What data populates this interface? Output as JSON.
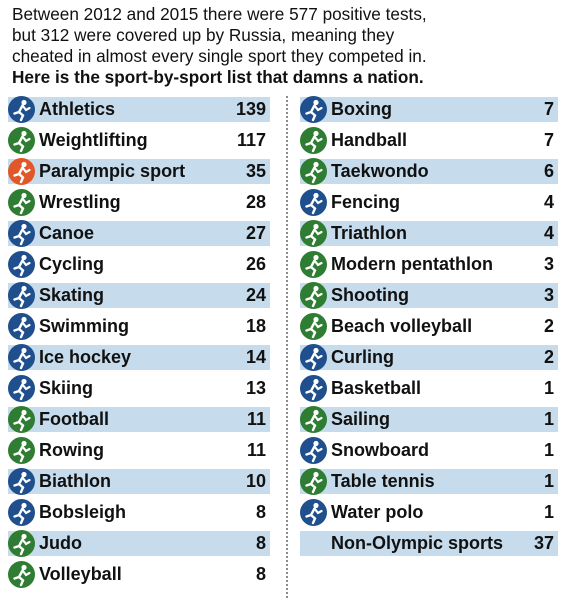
{
  "intro": {
    "line1": "Between 2012 and 2015 there were 577 positive tests,",
    "line2": "but 312 were covered up by Russia, meaning they",
    "line3": "cheated in almost every single sport they competed in.",
    "line4": "Here is the sport-by-sport list that damns a nation."
  },
  "colors": {
    "icon_blue": "#1f4f8c",
    "icon_green": "#2e7d32",
    "icon_orange": "#e2572a",
    "shade": "#c6dbeb"
  },
  "left": [
    {
      "sport": "Athletics",
      "count": "139",
      "icon": "athletics-icon",
      "color": "#1f4f8c",
      "shaded": true
    },
    {
      "sport": "Weightlifting",
      "count": "117",
      "icon": "weightlifting-icon",
      "color": "#2e7d32",
      "shaded": false
    },
    {
      "sport": "Paralympic sport",
      "count": "35",
      "icon": "paralympic-icon",
      "color": "#e2572a",
      "shaded": true
    },
    {
      "sport": "Wrestling",
      "count": "28",
      "icon": "wrestling-icon",
      "color": "#2e7d32",
      "shaded": false
    },
    {
      "sport": "Canoe",
      "count": "27",
      "icon": "canoe-icon",
      "color": "#1f4f8c",
      "shaded": true
    },
    {
      "sport": "Cycling",
      "count": "26",
      "icon": "cycling-icon",
      "color": "#1f4f8c",
      "shaded": false
    },
    {
      "sport": "Skating",
      "count": "24",
      "icon": "skating-icon",
      "color": "#1f4f8c",
      "shaded": true
    },
    {
      "sport": "Swimming",
      "count": "18",
      "icon": "swimming-icon",
      "color": "#1f4f8c",
      "shaded": false
    },
    {
      "sport": "Ice hockey",
      "count": "14",
      "icon": "ice-hockey-icon",
      "color": "#1f4f8c",
      "shaded": true
    },
    {
      "sport": "Skiing",
      "count": "13",
      "icon": "skiing-icon",
      "color": "#1f4f8c",
      "shaded": false
    },
    {
      "sport": "Football",
      "count": "11",
      "icon": "football-icon",
      "color": "#2e7d32",
      "shaded": true
    },
    {
      "sport": "Rowing",
      "count": "11",
      "icon": "rowing-icon",
      "color": "#2e7d32",
      "shaded": false
    },
    {
      "sport": "Biathlon",
      "count": "10",
      "icon": "biathlon-icon",
      "color": "#1f4f8c",
      "shaded": true
    },
    {
      "sport": "Bobsleigh",
      "count": "8",
      "icon": "bobsleigh-icon",
      "color": "#1f4f8c",
      "shaded": false
    },
    {
      "sport": "Judo",
      "count": "8",
      "icon": "judo-icon",
      "color": "#2e7d32",
      "shaded": true
    },
    {
      "sport": "Volleyball",
      "count": "8",
      "icon": "volleyball-icon",
      "color": "#2e7d32",
      "shaded": false
    }
  ],
  "right": [
    {
      "sport": "Boxing",
      "count": "7",
      "icon": "boxing-icon",
      "color": "#1f4f8c",
      "shaded": true
    },
    {
      "sport": "Handball",
      "count": "7",
      "icon": "handball-icon",
      "color": "#2e7d32",
      "shaded": false
    },
    {
      "sport": "Taekwondo",
      "count": "6",
      "icon": "taekwondo-icon",
      "color": "#2e7d32",
      "shaded": true
    },
    {
      "sport": "Fencing",
      "count": "4",
      "icon": "fencing-icon",
      "color": "#1f4f8c",
      "shaded": false
    },
    {
      "sport": "Triathlon",
      "count": "4",
      "icon": "triathlon-icon",
      "color": "#2e7d32",
      "shaded": true
    },
    {
      "sport": "Modern pentathlon",
      "count": "3",
      "icon": "modern-pentathlon-icon",
      "color": "#2e7d32",
      "shaded": false
    },
    {
      "sport": "Shooting",
      "count": "3",
      "icon": "shooting-icon",
      "color": "#2e7d32",
      "shaded": true
    },
    {
      "sport": "Beach volleyball",
      "count": "2",
      "icon": "beach-volleyball-icon",
      "color": "#2e7d32",
      "shaded": false
    },
    {
      "sport": "Curling",
      "count": "2",
      "icon": "curling-icon",
      "color": "#1f4f8c",
      "shaded": true
    },
    {
      "sport": "Basketball",
      "count": "1",
      "icon": "basketball-icon",
      "color": "#1f4f8c",
      "shaded": false
    },
    {
      "sport": "Sailing",
      "count": "1",
      "icon": "sailing-icon",
      "color": "#2e7d32",
      "shaded": true
    },
    {
      "sport": "Snowboard",
      "count": "1",
      "icon": "snowboard-icon",
      "color": "#1f4f8c",
      "shaded": false
    },
    {
      "sport": "Table tennis",
      "count": "1",
      "icon": "table-tennis-icon",
      "color": "#2e7d32",
      "shaded": true
    },
    {
      "sport": "Water polo",
      "count": "1",
      "icon": "water-polo-icon",
      "color": "#1f4f8c",
      "shaded": false
    },
    {
      "sport": "Non-Olympic sports",
      "count": "37",
      "icon": "",
      "color": "",
      "shaded": true
    }
  ]
}
